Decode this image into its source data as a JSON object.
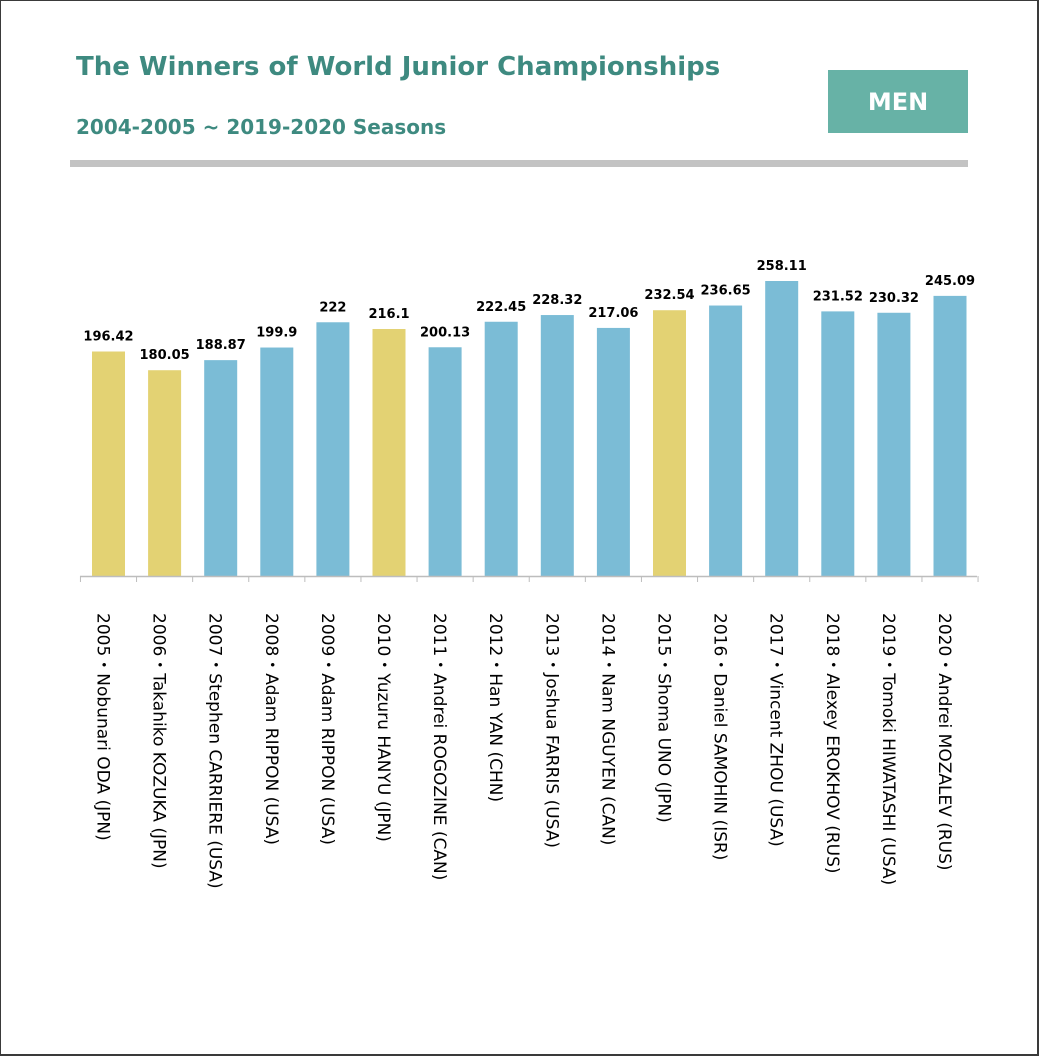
{
  "header": {
    "title": "The Winners of World Junior Championships",
    "subtitle": "2004-2005 ~ 2019-2020 Seasons",
    "badge": "MEN"
  },
  "colors": {
    "title": "#3e8a80",
    "badge_bg": "#67b2a6",
    "divider": "#c3c3c3",
    "bar_jpn": "#e3d273",
    "bar_other": "#7bbcd6"
  },
  "chart_data": {
    "type": "bar",
    "title": "The Winners of World Junior Championships",
    "subtitle": "2004-2005 ~ 2019-2020 Seasons",
    "categories": [
      "2005・Nobunari ODA (JPN)",
      "2006・Takahiko KOZUKA (JPN)",
      "2007・Stephen CARRIERE (USA)",
      "2008・Adam RIPPON (USA)",
      "2009・Adam RIPPON (USA)",
      "2010・Yuzuru HANYU (JPN)",
      "2011・Andrei ROGOZINE (CAN)",
      "2012・Han YAN (CHN)",
      "2013・Joshua FARRIS (USA)",
      "2014・Nam NGUYEN (CAN)",
      "2015・Shoma UNO (JPN)",
      "2016・Daniel SAMOHIN (ISR)",
      "2017・Vincent ZHOU (USA)",
      "2018・Alexey EROKHOV (RUS)",
      "2019・Tomoki HIWATASHI (USA)",
      "2020・Andrei MOZALEV (RUS)"
    ],
    "values": [
      196.42,
      180.05,
      188.87,
      199.9,
      222,
      216.1,
      200.13,
      222.45,
      228.32,
      217.06,
      232.54,
      236.65,
      258.11,
      231.52,
      230.32,
      245.09
    ],
    "value_labels": [
      "196.42",
      "180.05",
      "188.87",
      "199.9",
      "222",
      "216.1",
      "200.13",
      "222.45",
      "228.32",
      "217.06",
      "232.54",
      "236.65",
      "258.11",
      "231.52",
      "230.32",
      "245.09"
    ],
    "highlight": [
      true,
      true,
      false,
      false,
      false,
      true,
      false,
      false,
      false,
      false,
      true,
      false,
      false,
      false,
      false,
      false
    ],
    "xlabel": "",
    "ylabel": "",
    "ylim": [
      0,
      258.11
    ],
    "grid": false,
    "legend": "none"
  }
}
